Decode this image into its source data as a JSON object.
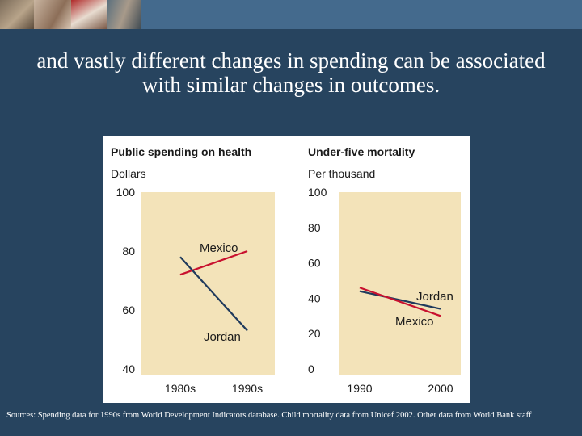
{
  "slide": {
    "title": "and vastly different changes in spending can be associated with similar changes in outcomes.",
    "sources": "Sources: Spending data for 1990s from World Development Indicators database.  Child mortality data from Unicef 2002.  Other data from World Bank staff"
  },
  "colors": {
    "background": "#27445f",
    "band": "#446a8d",
    "plot_bg": "#f3e3b9",
    "mexico": "#c8102e",
    "jordan": "#1f3a5c"
  },
  "chart_data": [
    {
      "type": "line",
      "title": "Public spending on health",
      "ylabel": "Dollars",
      "x": [
        "1980s",
        "1990s"
      ],
      "ylim": [
        40,
        100
      ],
      "yticks": [
        40,
        60,
        80,
        100
      ],
      "grid": false,
      "series": [
        {
          "name": "Mexico",
          "values": [
            72,
            80
          ]
        },
        {
          "name": "Jordan",
          "values": [
            78,
            53
          ]
        }
      ]
    },
    {
      "type": "line",
      "title": "Under-five mortality",
      "ylabel": "Per thousand",
      "x": [
        "1990",
        "2000"
      ],
      "ylim": [
        0,
        100
      ],
      "yticks": [
        0,
        20,
        40,
        60,
        80,
        100
      ],
      "grid": false,
      "series": [
        {
          "name": "Jordan",
          "values": [
            44,
            34
          ]
        },
        {
          "name": "Mexico",
          "values": [
            46,
            30
          ]
        }
      ]
    }
  ]
}
